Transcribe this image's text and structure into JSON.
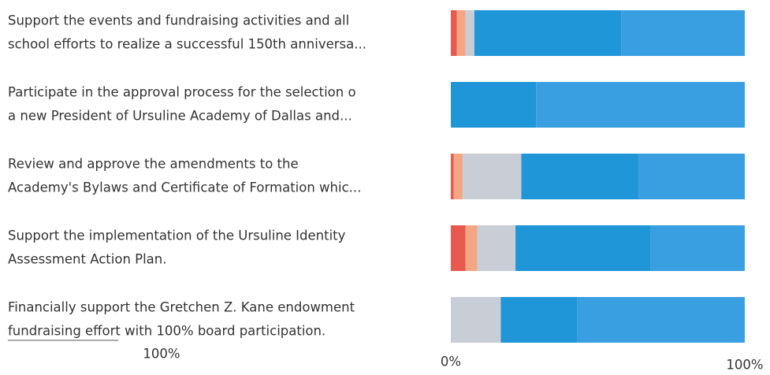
{
  "chart_data": {
    "type": "stacked-bar-horizontal",
    "categories": [
      [
        "Support the events and fundraising activities and all",
        "school efforts to realize a successful 150th anniversa..."
      ],
      [
        "Participate in the approval process for the selection o",
        "a new President of Ursuline Academy of Dallas and..."
      ],
      [
        "Review and approve the amendments to the",
        "Academy's Bylaws and Certificate of Formation whic..."
      ],
      [
        "Support the implementation of the Ursuline Identity",
        "Assessment Action Plan."
      ],
      [
        "Financially support the Gretchen Z. Kane endowment",
        "fundraising effort with 100% board participation."
      ]
    ],
    "series": [
      {
        "color": "#e8594f",
        "values": [
          2,
          0,
          1,
          5,
          0
        ]
      },
      {
        "color": "#f4a582",
        "values": [
          3,
          0,
          3,
          4,
          0
        ]
      },
      {
        "color": "#c8cdd6",
        "values": [
          3,
          0,
          20,
          13,
          17
        ]
      },
      {
        "color": "#1f96d8",
        "values": [
          50,
          29,
          40,
          46,
          26
        ]
      },
      {
        "color": "#3a9fe0",
        "values": [
          42,
          71,
          36,
          32,
          57
        ]
      }
    ],
    "xlim": [
      0,
      100
    ],
    "xticks": [
      {
        "value": 0,
        "label": "0%"
      },
      {
        "value": 100,
        "label": "100%"
      }
    ],
    "side_label": "100%"
  }
}
